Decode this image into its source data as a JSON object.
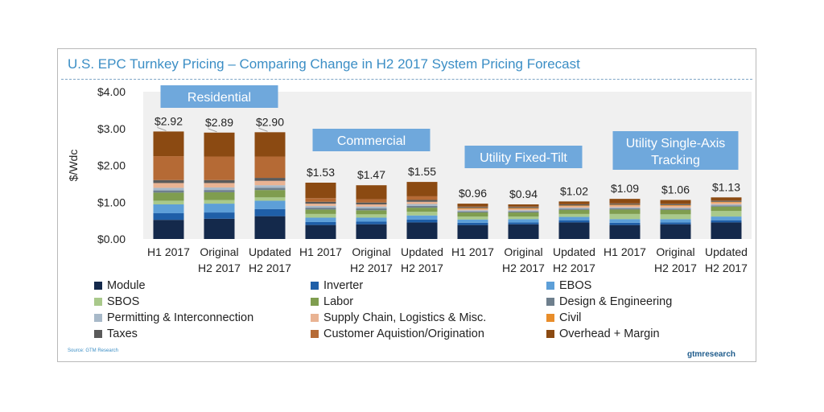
{
  "title": "U.S. EPC Turnkey Pricing – Comparing Change in H2 2017 System Pricing Forecast",
  "source": "Source: GTM Research",
  "brand": "gtmresearch",
  "chart_data": {
    "type": "bar",
    "stacked": true,
    "ylabel": "$/Wdc",
    "ylim": [
      0,
      4
    ],
    "yticks": [
      "$0.00",
      "$1.00",
      "$2.00",
      "$3.00",
      "$4.00"
    ],
    "grid": false,
    "groups": [
      {
        "label": "Residential",
        "bars": [
          0,
          1,
          2
        ]
      },
      {
        "label": "Commercial",
        "bars": [
          3,
          4,
          5
        ]
      },
      {
        "label": "Utility Fixed-Tilt",
        "bars": [
          6,
          7,
          8
        ]
      },
      {
        "label": "Utility Single-Axis Tracking",
        "bars": [
          9,
          10,
          11
        ]
      }
    ],
    "categories": [
      [
        "H1 2017"
      ],
      [
        "Original",
        "H2 2017"
      ],
      [
        "Updated",
        "H2 2017"
      ],
      [
        "H1 2017"
      ],
      [
        "Original",
        "H2 2017"
      ],
      [
        "Updated",
        "H2 2017"
      ],
      [
        "H1 2017"
      ],
      [
        "Original",
        "H2 2017"
      ],
      [
        "Updated",
        "H2 2017"
      ],
      [
        "H1 2017"
      ],
      [
        "Original",
        "H2 2017"
      ],
      [
        "Updated",
        "H2 2017"
      ]
    ],
    "totals": [
      "$2.92",
      "$2.89",
      "$2.90",
      "$1.53",
      "$1.47",
      "$1.55",
      "$0.96",
      "$0.94",
      "$1.02",
      "$1.09",
      "$1.06",
      "$1.13"
    ],
    "legend_position": "bottom",
    "series": [
      {
        "name": "Module",
        "color": "#14294b",
        "values": [
          0.52,
          0.55,
          0.62,
          0.38,
          0.4,
          0.45,
          0.38,
          0.4,
          0.45,
          0.38,
          0.4,
          0.45
        ]
      },
      {
        "name": "Inverter",
        "color": "#1f5fa8",
        "values": [
          0.18,
          0.17,
          0.19,
          0.08,
          0.07,
          0.08,
          0.06,
          0.05,
          0.06,
          0.06,
          0.05,
          0.06
        ]
      },
      {
        "name": "EBOS",
        "color": "#5d9fd8",
        "values": [
          0.24,
          0.24,
          0.23,
          0.12,
          0.11,
          0.11,
          0.09,
          0.09,
          0.09,
          0.1,
          0.09,
          0.1
        ]
      },
      {
        "name": "SBOS",
        "color": "#a9c98b",
        "values": [
          0.1,
          0.1,
          0.09,
          0.1,
          0.09,
          0.1,
          0.08,
          0.07,
          0.08,
          0.14,
          0.13,
          0.15
        ]
      },
      {
        "name": "Labor",
        "color": "#7f9d4f",
        "values": [
          0.22,
          0.21,
          0.2,
          0.12,
          0.11,
          0.11,
          0.11,
          0.11,
          0.11,
          0.12,
          0.12,
          0.12
        ]
      },
      {
        "name": "Design & Engineering",
        "color": "#6e7f8d",
        "values": [
          0.06,
          0.06,
          0.06,
          0.05,
          0.05,
          0.05,
          0.03,
          0.03,
          0.03,
          0.03,
          0.03,
          0.03
        ]
      },
      {
        "name": "Permitting & Interconnection",
        "color": "#a8b9c9",
        "values": [
          0.07,
          0.07,
          0.07,
          0.05,
          0.05,
          0.05,
          0.03,
          0.03,
          0.03,
          0.03,
          0.03,
          0.03
        ]
      },
      {
        "name": "Supply Chain, Logistics & Misc.",
        "color": "#e9b393",
        "values": [
          0.13,
          0.12,
          0.12,
          0.06,
          0.06,
          0.06,
          0.04,
          0.04,
          0.04,
          0.05,
          0.05,
          0.05
        ]
      },
      {
        "name": "Civil",
        "color": "#e88d2a",
        "values": [
          0.0,
          0.0,
          0.0,
          0.0,
          0.0,
          0.0,
          0.02,
          0.02,
          0.02,
          0.02,
          0.02,
          0.02
        ]
      },
      {
        "name": "Taxes",
        "color": "#5a5a5a",
        "values": [
          0.08,
          0.08,
          0.08,
          0.05,
          0.05,
          0.05,
          0.03,
          0.03,
          0.03,
          0.03,
          0.03,
          0.03
        ]
      },
      {
        "name": "Customer Aquistion/Origination",
        "color": "#b56a35",
        "values": [
          0.65,
          0.64,
          0.58,
          0.1,
          0.09,
          0.1,
          0.01,
          0.01,
          0.01,
          0.01,
          0.01,
          0.01
        ]
      },
      {
        "name": "Overhead + Margin",
        "color": "#8b4a12",
        "values": [
          0.67,
          0.65,
          0.66,
          0.42,
          0.38,
          0.39,
          0.08,
          0.06,
          0.07,
          0.12,
          0.1,
          0.08
        ]
      }
    ]
  }
}
